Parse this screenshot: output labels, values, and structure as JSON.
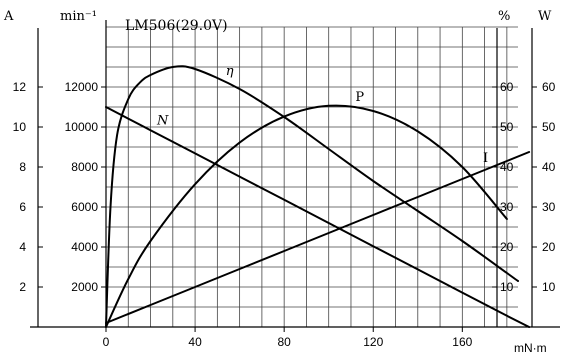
{
  "chart_data": {
    "type": "line",
    "title": "LM506(29.0V)",
    "xlabel": "mN·m",
    "unit_labels": {
      "current": "A",
      "speed": "min⁻¹",
      "efficiency": "%",
      "power": "W"
    },
    "axes": {
      "x": {
        "range": [
          0,
          185
        ],
        "ticks": [
          0,
          40,
          80,
          120,
          160
        ]
      },
      "speed": {
        "range": [
          0,
          15000
        ],
        "ticks": [
          2000,
          4000,
          6000,
          8000,
          10000,
          12000
        ]
      },
      "current": {
        "range": [
          0,
          15
        ],
        "ticks": [
          2,
          4,
          6,
          8,
          10,
          12
        ]
      },
      "efficiency": {
        "range": [
          0,
          75
        ],
        "ticks": [
          10,
          20,
          30,
          40,
          50,
          60
        ]
      },
      "power": {
        "range": [
          0,
          75
        ],
        "ticks": [
          10,
          20,
          30,
          40,
          50,
          60
        ]
      }
    },
    "grid": true,
    "series": [
      {
        "name": "N",
        "axis": "speed",
        "x": [
          0,
          20,
          40,
          60,
          80,
          100,
          120,
          140,
          160,
          180,
          190
        ],
        "values": [
          11000,
          9840,
          8680,
          7520,
          6360,
          5200,
          4040,
          2880,
          1720,
          560,
          0
        ]
      },
      {
        "name": "I",
        "axis": "current",
        "x": [
          0,
          20,
          40,
          60,
          80,
          100,
          120,
          140,
          160,
          180,
          190
        ],
        "values": [
          0.2,
          1.1,
          2.0,
          2.9,
          3.8,
          4.7,
          5.6,
          6.5,
          7.4,
          8.3,
          8.75
        ]
      },
      {
        "name": "P",
        "axis": "power",
        "x": [
          0,
          10,
          20,
          40,
          60,
          80,
          100,
          120,
          140,
          160,
          180
        ],
        "values": [
          0,
          12,
          21.5,
          35.7,
          46.1,
          52.6,
          55.3,
          54,
          48.9,
          40,
          27
        ]
      },
      {
        "name": "η",
        "axis": "efficiency",
        "x": [
          0,
          2,
          5,
          10,
          15,
          20,
          30,
          40,
          60,
          80,
          100,
          120,
          140,
          160,
          180,
          185
        ],
        "values": [
          0,
          30,
          48,
          57,
          61,
          63,
          65,
          64.5,
          59.5,
          52.5,
          44.5,
          36.5,
          29,
          21.5,
          13.5,
          11.5
        ]
      }
    ]
  }
}
